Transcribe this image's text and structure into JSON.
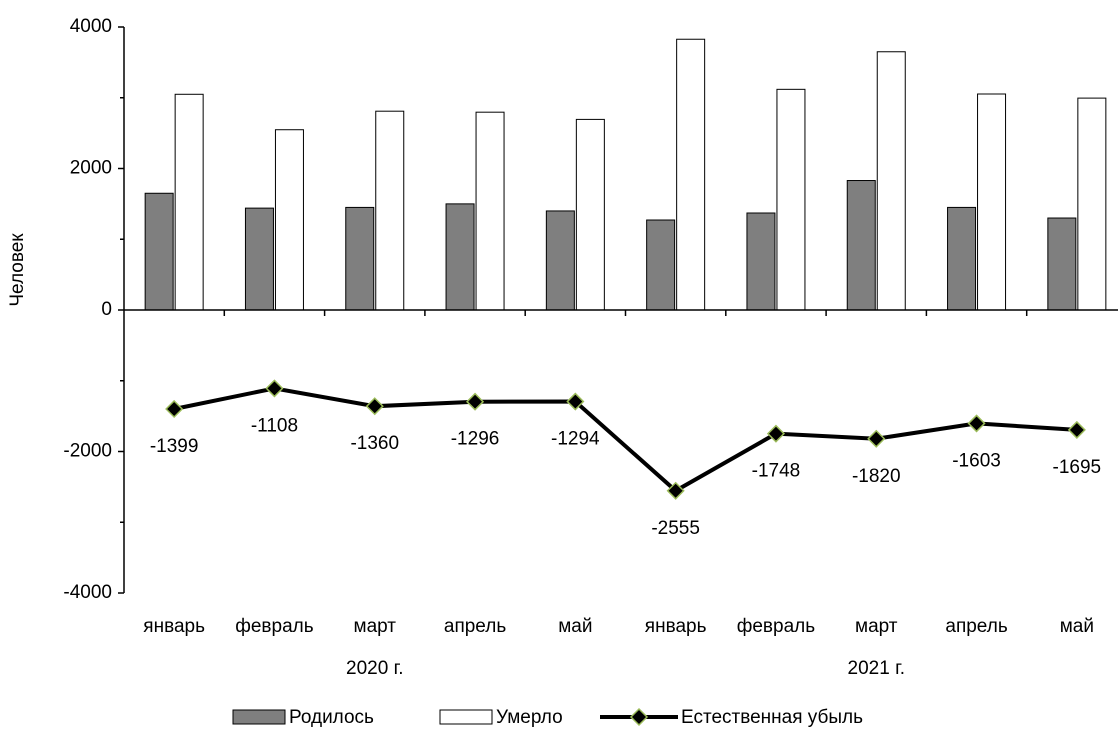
{
  "chart_data": {
    "type": "bar_line",
    "y_label": "Человек",
    "categories": [
      "январь",
      "февраль",
      "март",
      "апрель",
      "май",
      "январь",
      "февраль",
      "март",
      "апрель",
      "май"
    ],
    "groups": [
      "2020 г.",
      "2021 г."
    ],
    "ylim": [
      -4000,
      4000
    ],
    "yticks": [
      -4000,
      -2000,
      0,
      2000,
      4000
    ],
    "series": [
      {
        "name": "Родилось",
        "type": "bar",
        "color": "#7f7f7f",
        "values": [
          1650,
          1440,
          1450,
          1500,
          1400,
          1272,
          1371,
          1830,
          1450,
          1300
        ]
      },
      {
        "name": "Умерло",
        "type": "bar",
        "color": "#ffffff",
        "values": [
          3049,
          2548,
          2810,
          2796,
          2694,
          3827,
          3119,
          3650,
          3053,
          2995
        ]
      },
      {
        "name": "Естественная убыль",
        "type": "line",
        "color": "#000000",
        "marker_edge": "#9bbb59",
        "values": [
          -1399,
          -1108,
          -1360,
          -1296,
          -1294,
          -2555,
          -1748,
          -1820,
          -1603,
          -1695
        ]
      }
    ]
  }
}
